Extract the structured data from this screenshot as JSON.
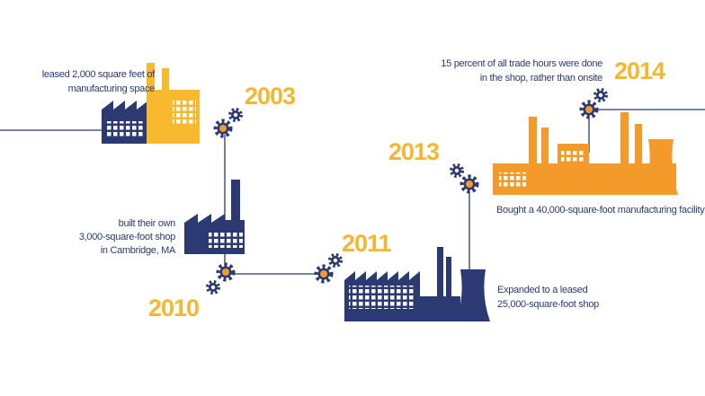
{
  "milestones": [
    {
      "year": "2003",
      "lines": [
        "leased 2,000 square feet of",
        "manufacturing space"
      ]
    },
    {
      "year": "2010",
      "lines": [
        "built their own",
        "3,000-square-foot shop",
        "in Cambridge, MA"
      ]
    },
    {
      "year": "2011",
      "lines": [
        "Expanded to a leased",
        "25,000-square-foot shop"
      ]
    },
    {
      "year": "2013",
      "lines": [
        "Bought a 40,000-square-foot manufacturing facility"
      ]
    },
    {
      "year": "2014",
      "lines": [
        "15 percent of all trade hours were done",
        "in the shop, rather than onsite"
      ]
    }
  ]
}
